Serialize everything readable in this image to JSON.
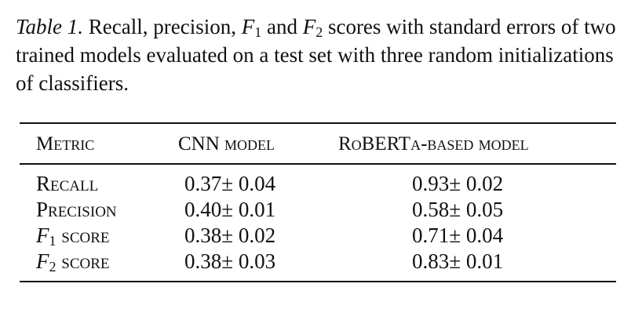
{
  "caption": {
    "label": "Table 1.",
    "part1": " Recall, precision, ",
    "f1_sym": "F",
    "f1_sub": "1",
    "part2": " and ",
    "f2_sym": "F",
    "f2_sub": "2",
    "part3": " scores with standard errors of two trained models evaluated on a test set with three random initializations of classifiers."
  },
  "table": {
    "headers": [
      "Metric",
      "CNN model",
      "RoBERTa-based model"
    ],
    "rows": [
      {
        "metric": "Recall",
        "cnn": "0.37± 0.04",
        "roberta": "0.93± 0.02"
      },
      {
        "metric": "Precision",
        "cnn": "0.40± 0.01",
        "roberta": "0.58± 0.05"
      },
      {
        "metric_sym": "F",
        "metric_sub": "1",
        "metric_rest": " score",
        "cnn": "0.38± 0.02",
        "roberta": "0.71± 0.04"
      },
      {
        "metric_sym": "F",
        "metric_sub": "2",
        "metric_rest": " score",
        "cnn": "0.38± 0.03",
        "roberta": "0.83± 0.01"
      }
    ]
  }
}
